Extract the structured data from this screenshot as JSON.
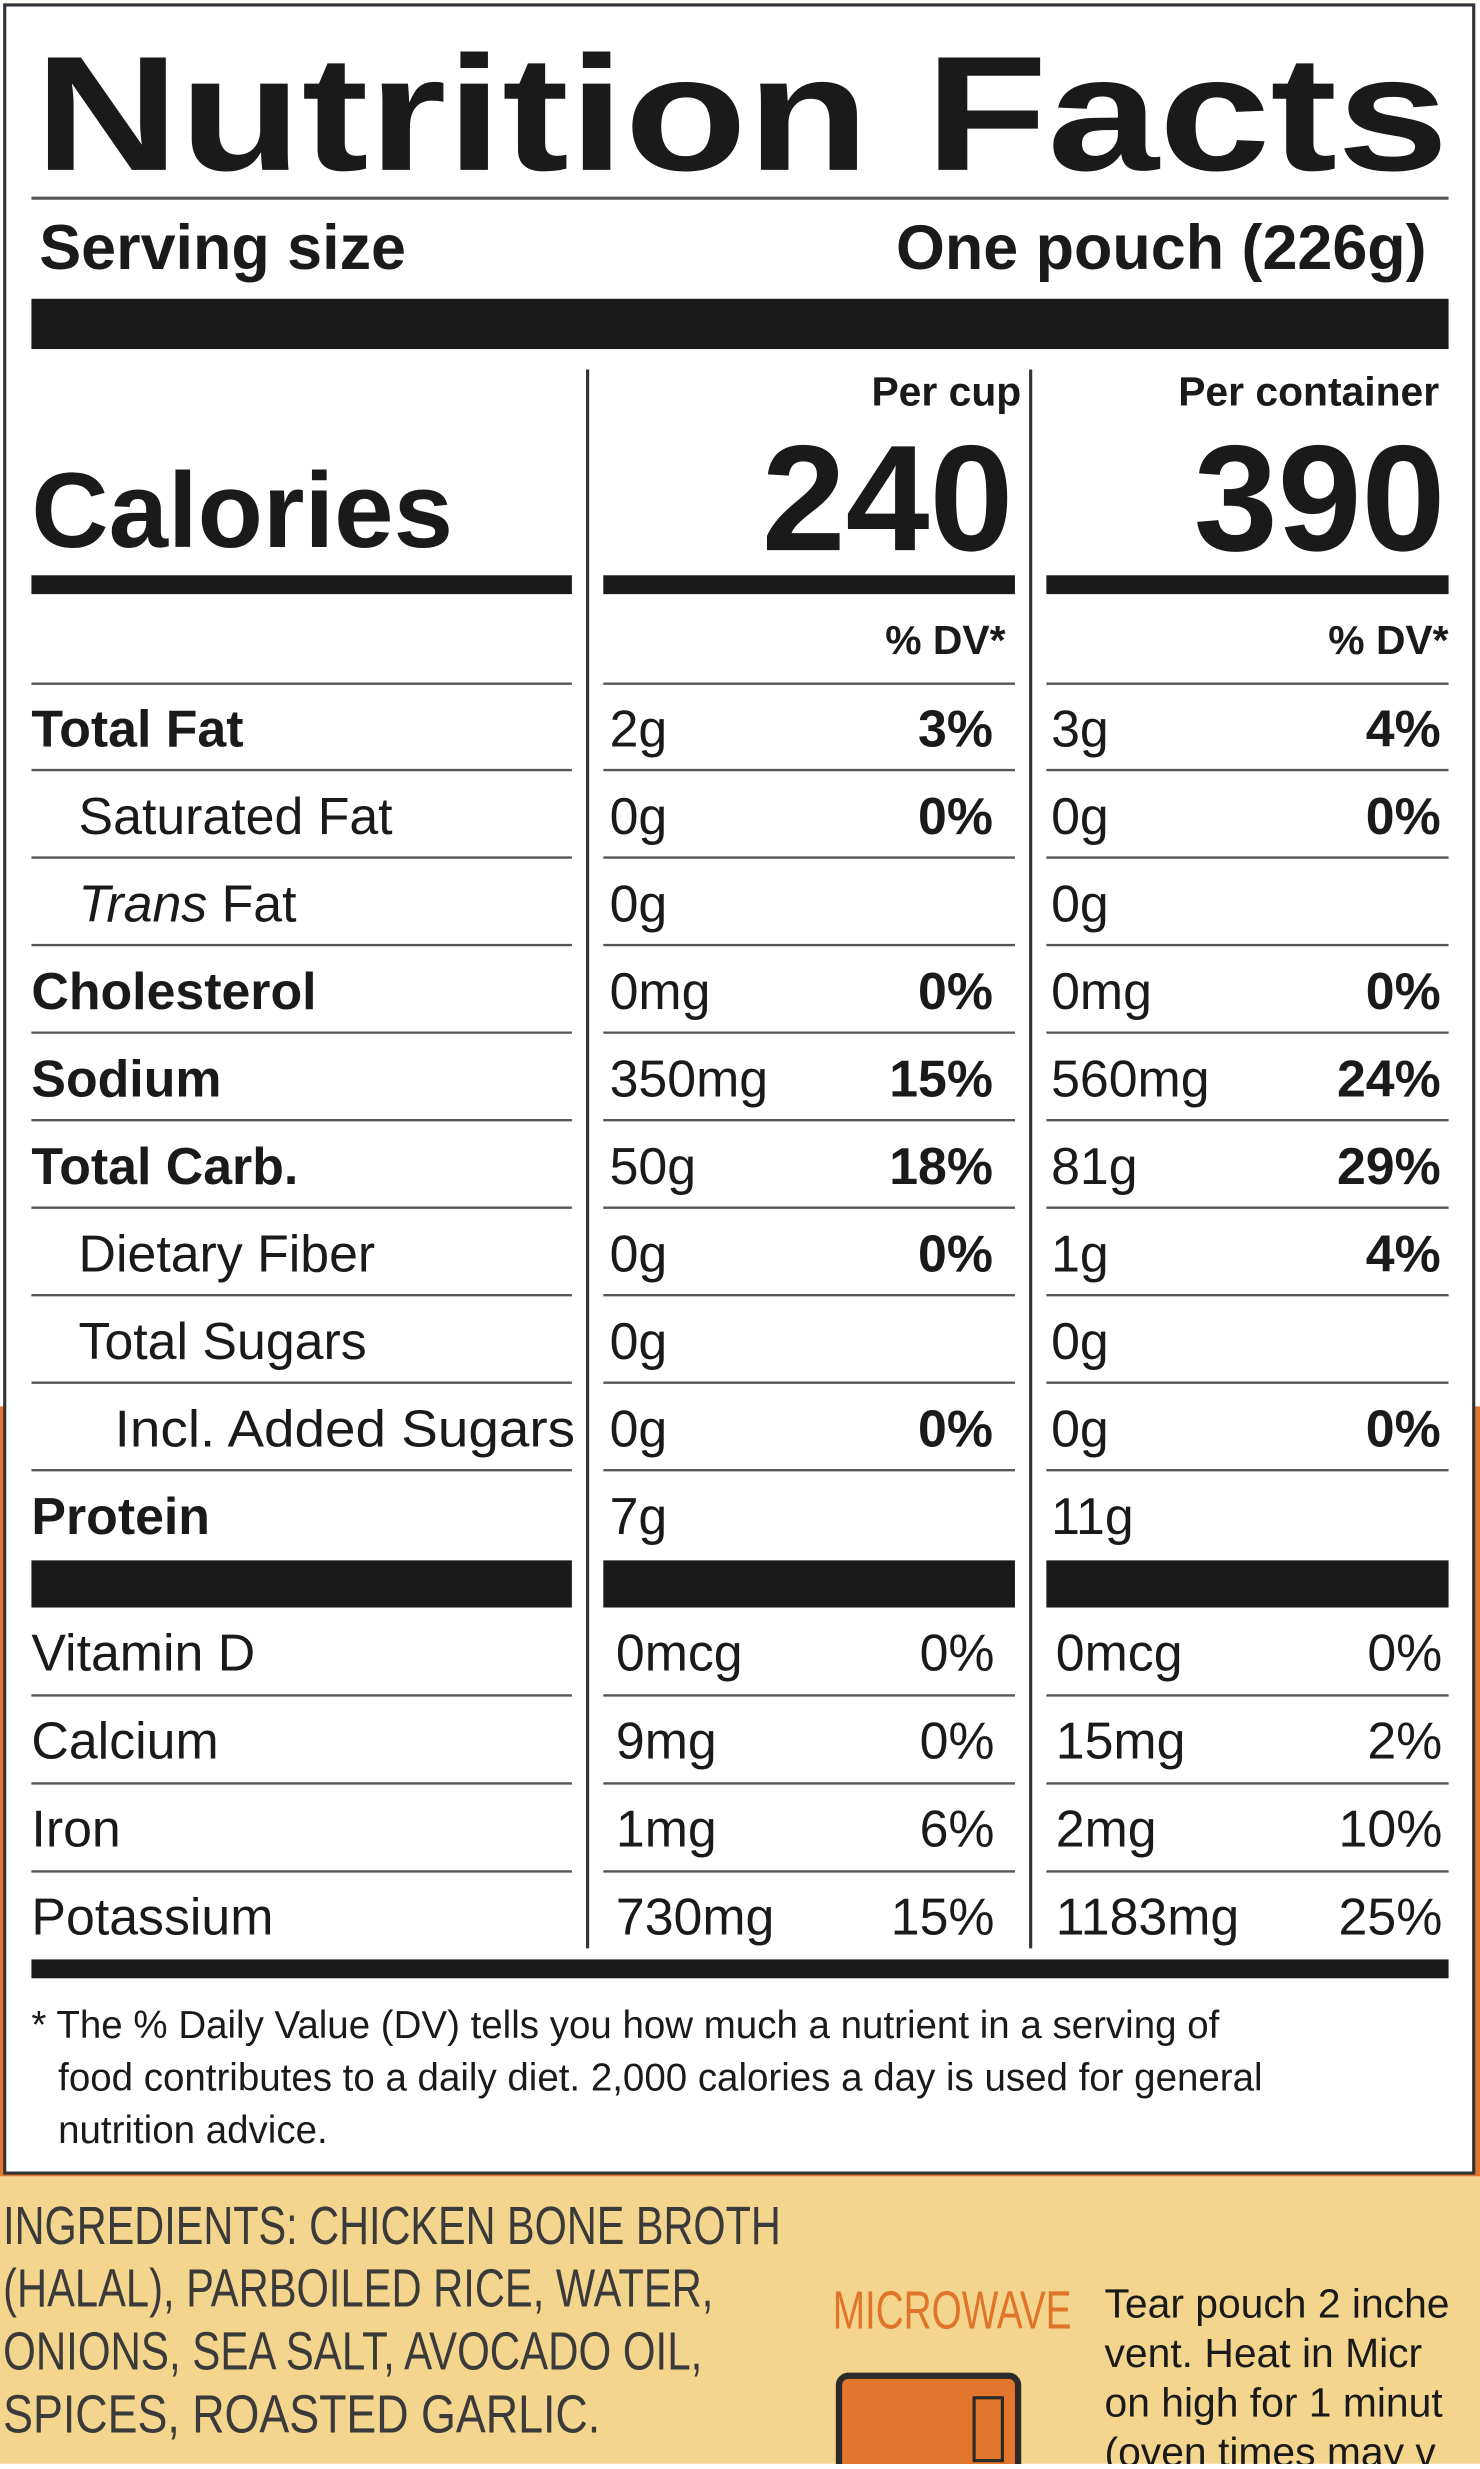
{
  "header": {
    "title": "Nutrition Facts"
  },
  "serving": {
    "label": "Serving size",
    "value": "One pouch (226g)"
  },
  "calories": {
    "label": "Calories",
    "columns": [
      {
        "heading": "Per cup",
        "value": 240,
        "dv_heading": "% DV*"
      },
      {
        "heading": "Per container",
        "value": 390,
        "dv_heading": "% DV*"
      }
    ]
  },
  "nutrients": {
    "rows": [
      {
        "name": "Total Fat",
        "bold": true,
        "indent": 0,
        "per_cup": {
          "amount": "2g",
          "dv": "3%"
        },
        "per_container": {
          "amount": "3g",
          "dv": "4%"
        }
      },
      {
        "name": "Saturated Fat",
        "bold": false,
        "indent": 1,
        "per_cup": {
          "amount": "0g",
          "dv": "0%"
        },
        "per_container": {
          "amount": "0g",
          "dv": "0%"
        }
      },
      {
        "name_italic": "Trans",
        "name": "Fat",
        "bold": false,
        "indent": 1,
        "per_cup": {
          "amount": "0g",
          "dv": null
        },
        "per_container": {
          "amount": "0g",
          "dv": null
        }
      },
      {
        "name": "Cholesterol",
        "bold": true,
        "indent": 0,
        "per_cup": {
          "amount": "0mg",
          "dv": "0%"
        },
        "per_container": {
          "amount": "0mg",
          "dv": "0%"
        }
      },
      {
        "name": "Sodium",
        "bold": true,
        "indent": 0,
        "per_cup": {
          "amount": "350mg",
          "dv": "15%"
        },
        "per_container": {
          "amount": "560mg",
          "dv": "24%"
        }
      },
      {
        "name": "Total Carb.",
        "bold": true,
        "indent": 0,
        "per_cup": {
          "amount": "50g",
          "dv": "18%"
        },
        "per_container": {
          "amount": "81g",
          "dv": "29%"
        }
      },
      {
        "name": "Dietary Fiber",
        "bold": false,
        "indent": 1,
        "per_cup": {
          "amount": "0g",
          "dv": "0%"
        },
        "per_container": {
          "amount": "1g",
          "dv": "4%"
        }
      },
      {
        "name": "Total Sugars",
        "bold": false,
        "indent": 1,
        "per_cup": {
          "amount": "0g",
          "dv": null
        },
        "per_container": {
          "amount": "0g",
          "dv": null
        }
      },
      {
        "name": "Incl. Added Sugars",
        "bold": false,
        "indent": 2,
        "per_cup": {
          "amount": "0g",
          "dv": "0%"
        },
        "per_container": {
          "amount": "0g",
          "dv": "0%"
        }
      },
      {
        "name": "Protein",
        "bold": true,
        "indent": 0,
        "per_cup": {
          "amount": "7g",
          "dv": null
        },
        "per_container": {
          "amount": "11g",
          "dv": null
        }
      }
    ]
  },
  "vitamins": {
    "rows": [
      {
        "name": "Vitamin D",
        "per_cup": {
          "amount": "0mcg",
          "dv": "0%"
        },
        "per_container": {
          "amount": "0mcg",
          "dv": "0%"
        }
      },
      {
        "name": "Calcium",
        "per_cup": {
          "amount": "9mg",
          "dv": "0%"
        },
        "per_container": {
          "amount": "15mg",
          "dv": "2%"
        }
      },
      {
        "name": "Iron",
        "per_cup": {
          "amount": "1mg",
          "dv": "6%"
        },
        "per_container": {
          "amount": "2mg",
          "dv": "10%"
        }
      },
      {
        "name": "Potassium",
        "per_cup": {
          "amount": "730mg",
          "dv": "15%"
        },
        "per_container": {
          "amount": "1183mg",
          "dv": "25%"
        }
      }
    ]
  },
  "footnote": {
    "lines": [
      "* The % Daily Value (DV) tells you how much a nutrient in a serving of",
      "food contributes to a daily diet. 2,000 calories a day is used for general",
      "nutrition advice."
    ]
  },
  "ingredients": {
    "lines": [
      "INGREDIENTS: CHICKEN BONE BROTH",
      "(HALAL), PARBOILED RICE, WATER,",
      "ONIONS, SEA SALT, AVOCADO OIL,",
      "SPICES, ROASTED GARLIC."
    ]
  },
  "microwave": {
    "label": "MICROWAVE",
    "lines": [
      "Tear pouch 2 inche",
      "vent. Heat in Micr",
      "on high for 1 minut",
      "(oven times may v"
    ]
  }
}
